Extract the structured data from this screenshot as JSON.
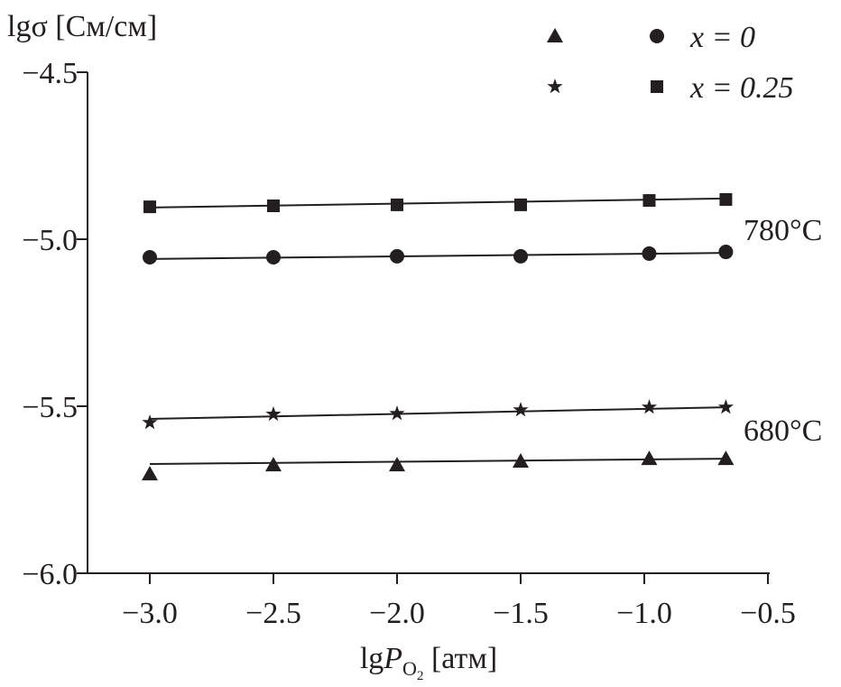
{
  "chart_data": {
    "type": "scatter",
    "ylabel": "lgσ [См/см]",
    "xlabel": {
      "prefix": "lg",
      "var": "P",
      "sub": "O",
      "subsub": "2",
      "unit": " [атм]"
    },
    "xlim": [
      -3.25,
      -0.5
    ],
    "ylim": [
      -6.0,
      -4.5
    ],
    "xticks": [
      -3.0,
      -2.5,
      -2.0,
      -1.5,
      -1.0,
      -0.5
    ],
    "xtick_labels": [
      "−3.0",
      "−2.5",
      "−2.0",
      "−1.5",
      "−1.0",
      "−0.5"
    ],
    "yticks": [
      -6.0,
      -5.5,
      -5.0,
      -4.5
    ],
    "ytick_labels": [
      "−6.0",
      "−5.5",
      "−5.0",
      "−4.5"
    ],
    "grid": false,
    "legend": {
      "placement": "top-right",
      "rows": [
        {
          "markers": [
            "triangle",
            "circle"
          ],
          "label": "x = 0"
        },
        {
          "markers": [
            "star",
            "square"
          ],
          "label": "x = 0.25"
        }
      ]
    },
    "annotations": [
      {
        "text": "780°C",
        "x": -0.6,
        "y": -4.97
      },
      {
        "text": "680°C",
        "x": -0.6,
        "y": -5.57
      }
    ],
    "x": [
      -3.0,
      -2.5,
      -2.0,
      -1.5,
      -0.98,
      -0.67
    ],
    "series": [
      {
        "name": "x = 0.25, 780°C",
        "marker": "square",
        "values": [
          -4.903,
          -4.9,
          -4.897,
          -4.897,
          -4.884,
          -4.881
        ],
        "fit": [
          -4.905,
          -4.878
        ]
      },
      {
        "name": "x = 0, 780°C",
        "marker": "circle",
        "values": [
          -5.054,
          -5.054,
          -5.051,
          -5.051,
          -5.043,
          -5.038
        ],
        "fit": [
          -5.059,
          -5.041
        ]
      },
      {
        "name": "x = 0.25, 680°C",
        "marker": "star",
        "values": [
          -5.549,
          -5.524,
          -5.522,
          -5.511,
          -5.503,
          -5.503
        ],
        "fit": [
          -5.538,
          -5.503
        ]
      },
      {
        "name": "x = 0, 680°C",
        "marker": "triangle",
        "values": [
          -5.703,
          -5.676,
          -5.676,
          -5.665,
          -5.657,
          -5.657
        ],
        "fit": [
          -5.673,
          -5.657
        ]
      }
    ],
    "colors": {
      "ink": "#231f20"
    }
  }
}
